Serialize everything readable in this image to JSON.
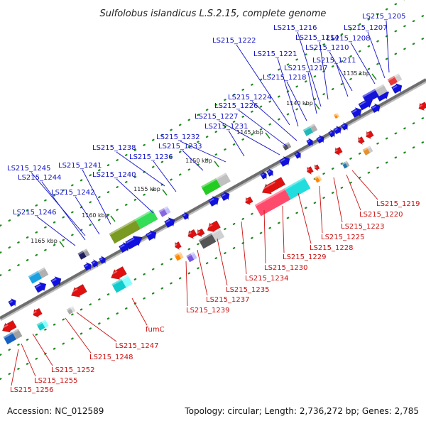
{
  "title": "Sulfolobus islandicus L.S.2.15, complete genome",
  "footer": {
    "accession": "Accession: NC_012589",
    "topology": "Topology: circular; Length: 2,736,272 bp; Genes: 2,785"
  },
  "colors": {
    "forward_gene": "#1010e0",
    "reverse_gene": "#e01010",
    "forward_label": "#1010c8",
    "reverse_label": "#cc1010",
    "backbone": "#6e6e6e",
    "tick": "#1f8a1f"
  },
  "ticks": [
    {
      "label": "1135 kbp"
    },
    {
      "label": "1140 kbp"
    },
    {
      "label": "1145 kbp"
    },
    {
      "label": "1150 kbp"
    },
    {
      "label": "1155 kbp"
    },
    {
      "label": "1160 kbp"
    },
    {
      "label": "1165 kbp"
    }
  ],
  "labels_top": [
    "LS215_1205",
    "LS215_1207",
    "LS215_1208",
    "LS215_1210",
    "LS215_1211",
    "LS215_1214",
    "LS215_1216",
    "LS215_1217",
    "LS215_1218",
    "LS215_1221",
    "LS215_1222",
    "LS215_1224",
    "LS215_1226",
    "LS215_1227",
    "LS215_1231",
    "LS215_1232",
    "LS215_1233",
    "LS215_1236",
    "LS215_1238",
    "LS215_1240",
    "LS215_1241",
    "LS215_1242",
    "LS215_1244",
    "LS215_1245",
    "LS215_1246"
  ],
  "labels_bottom": [
    "LS215_1219",
    "LS215_1220",
    "LS215_1223",
    "LS215_1225",
    "LS215_1228",
    "LS215_1229",
    "LS215_1230",
    "LS215_1234",
    "LS215_1235",
    "LS215_1237",
    "LS215_1239",
    "fumC",
    "LS215_1247",
    "LS215_1248",
    "LS215_1252",
    "LS215_1255",
    "LS215_1256"
  ]
}
